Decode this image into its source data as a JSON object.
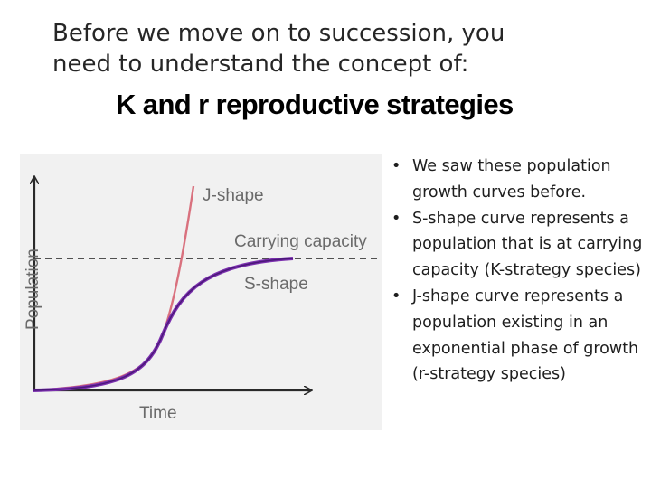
{
  "slide": {
    "intro_line_1": "Before we move on to succession, you",
    "intro_line_2": "need to understand the concept of:",
    "heading": "K and r reproductive strategies"
  },
  "graph": {
    "y_axis_label": "Population",
    "x_axis_label": "Time",
    "j_label": "J-shape",
    "s_label": "S-shape",
    "capacity_label": "Carrying capacity",
    "colors": {
      "j_curve": "#d9717e",
      "s_curve": "#5a1f8f",
      "axis": "#2a2a2a",
      "label": "#6a6a6a",
      "panel": "#f1f1f1"
    }
  },
  "bullets": {
    "marker": "•",
    "items": [
      "We saw these population growth curves before.",
      "S-shape curve represents a population that is at carrying capacity (K-strategy species)",
      "J-shape curve represents a population existing in an exponential phase of growth (r-strategy species)"
    ]
  }
}
